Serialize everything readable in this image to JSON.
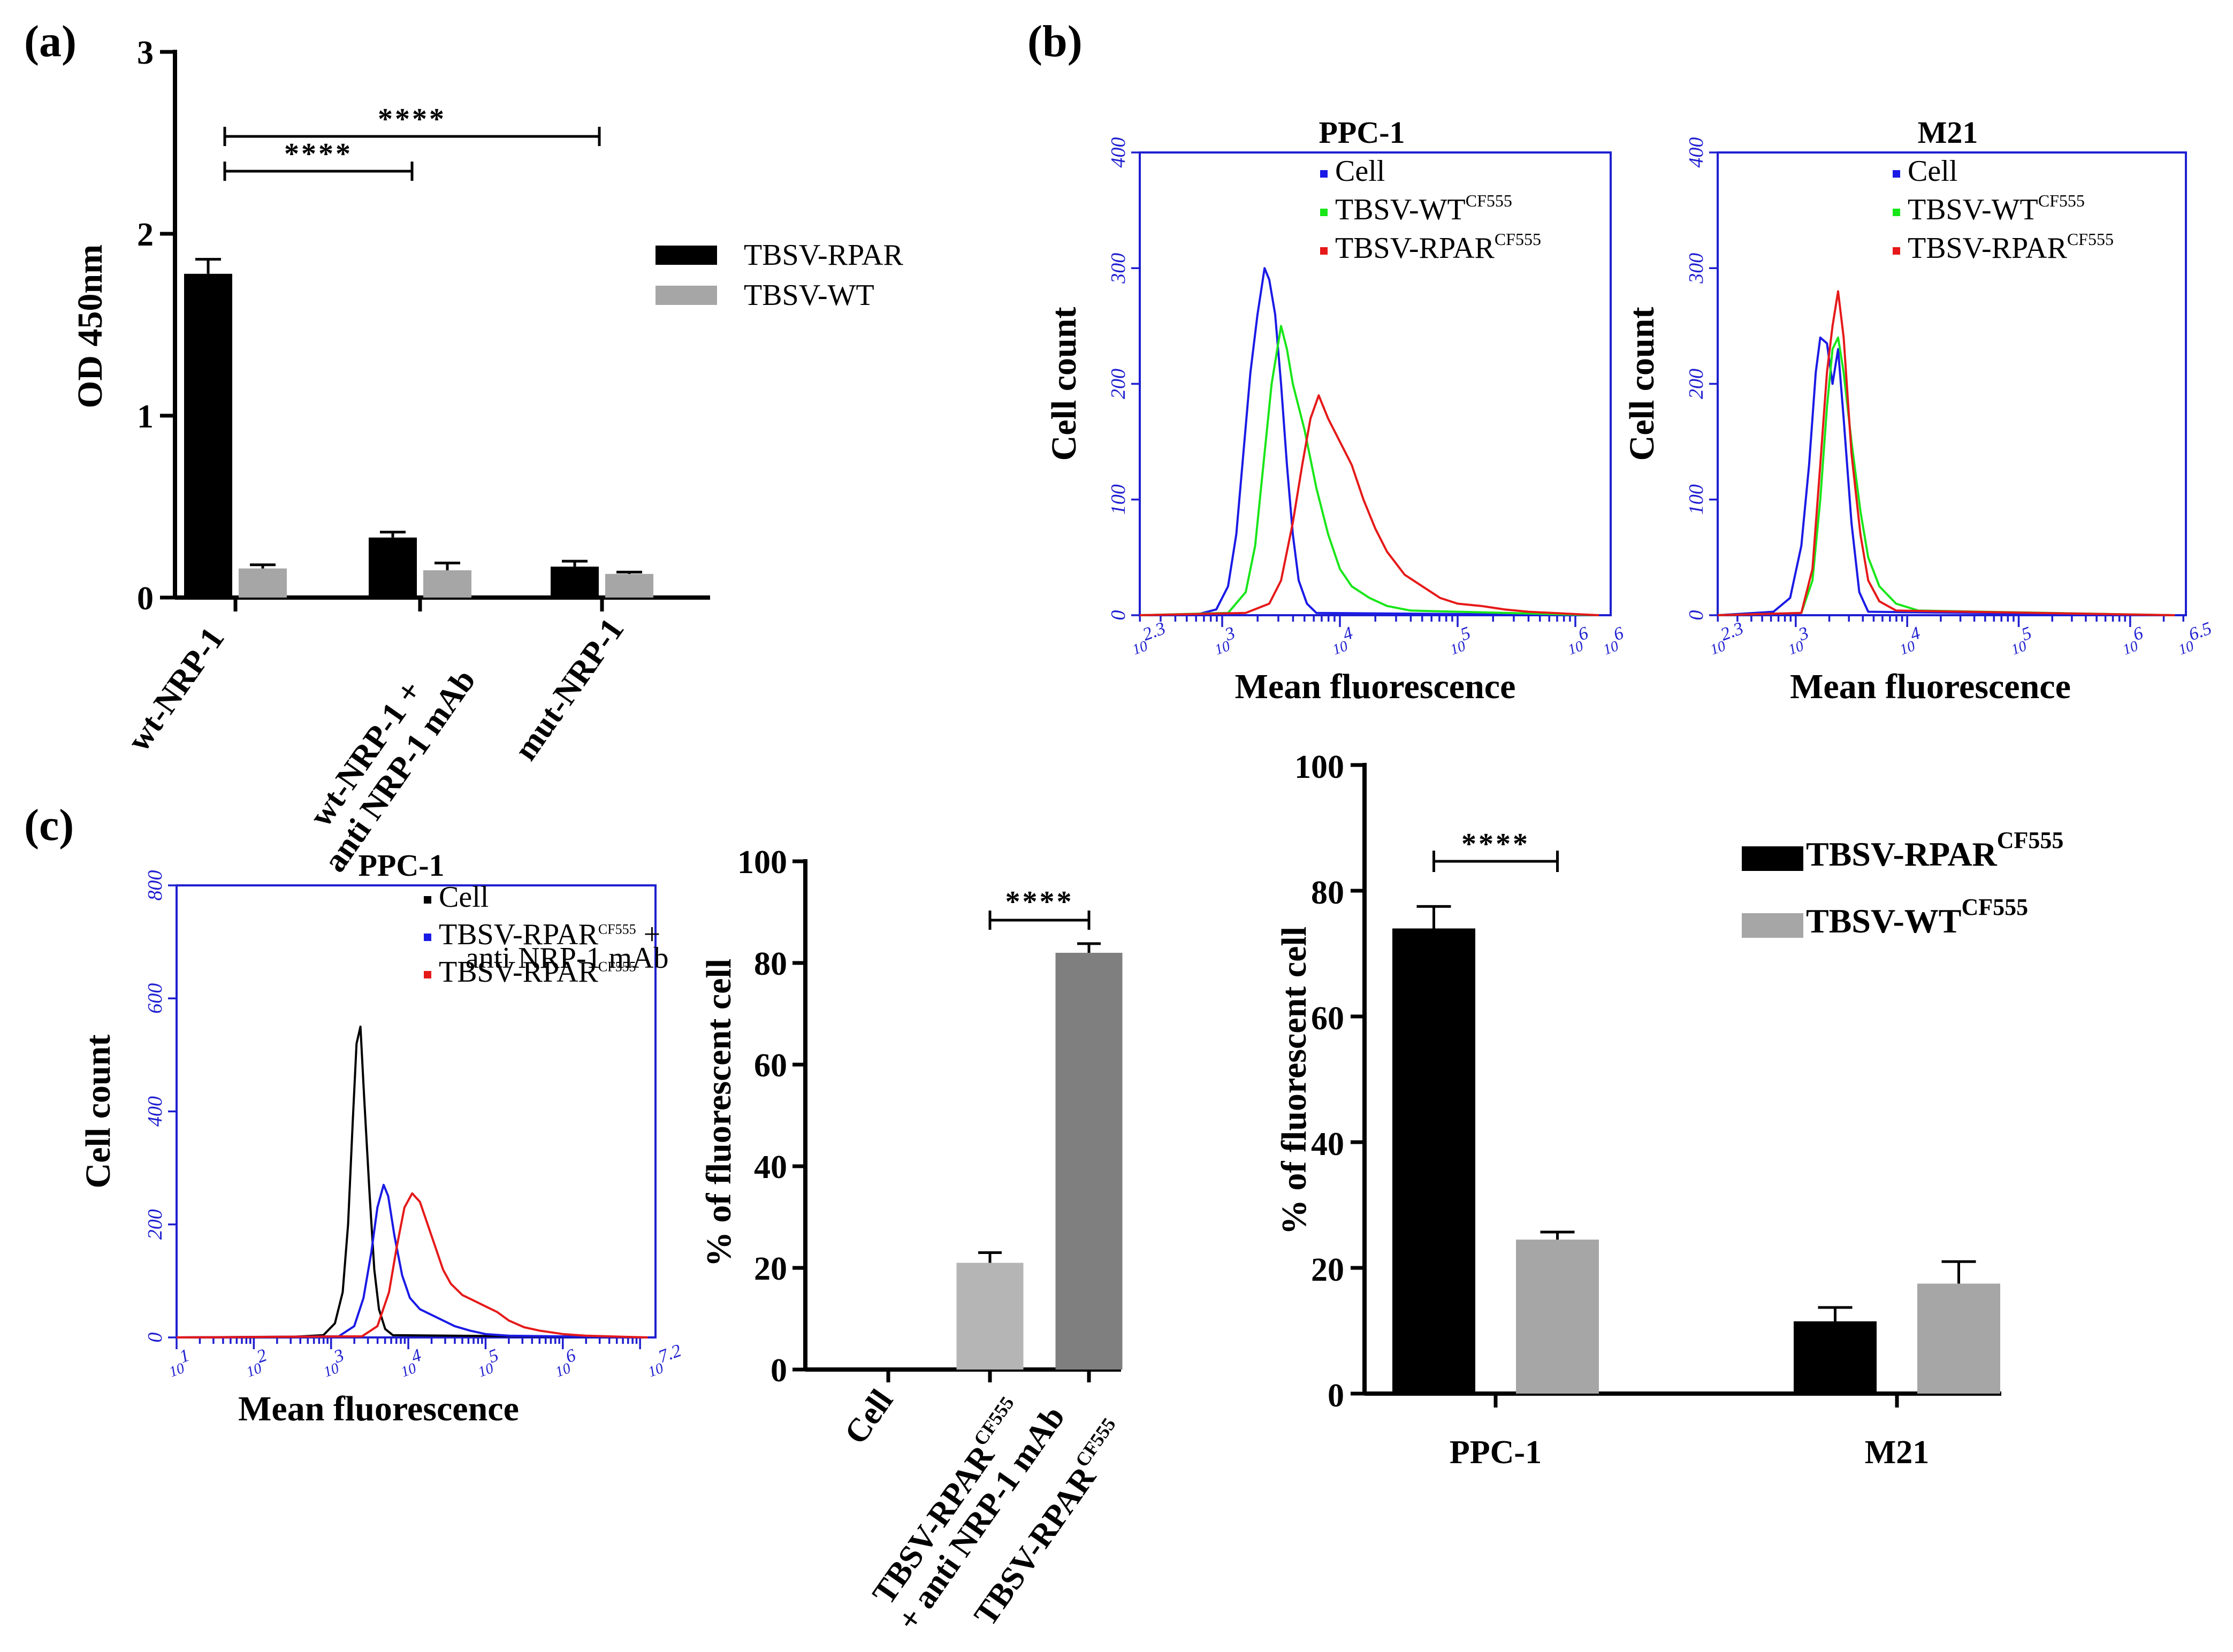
{
  "panels": {
    "a": "(a)",
    "b": "(b)",
    "c": "(c)"
  },
  "colors": {
    "black_bar": "#000000",
    "light_gray_bar": "#a6a6a6",
    "mid_gray_bar": "#b5b5b5",
    "dark_gray_bar": "#7f7f7f",
    "blue": "#1a1ae6",
    "green": "#19e619",
    "red": "#e61919",
    "axis_blue": "#1f1fd0"
  },
  "chart_data": [
    {
      "id": "a",
      "type": "bar",
      "title": "",
      "ylabel": "OD 450nm",
      "ylim": [
        0,
        3
      ],
      "yticks": [
        "0",
        "1",
        "2",
        "3"
      ],
      "categories": [
        "wt-NRP-1",
        "wt-NRP-1 +",
        "mut-NRP-1"
      ],
      "category_line2": [
        "",
        "anti NRP-1 mAb",
        ""
      ],
      "series": [
        {
          "name": "TBSV-RPAR",
          "values": [
            1.78,
            0.33,
            0.17
          ],
          "errors": [
            0.08,
            0.03,
            0.03
          ]
        },
        {
          "name": "TBSV-WT",
          "values": [
            0.16,
            0.15,
            0.13
          ],
          "errors": [
            0.02,
            0.04,
            0.01
          ]
        }
      ],
      "significance": [
        {
          "label": "****",
          "from_category": 0,
          "to_category": 1
        },
        {
          "label": "****",
          "from_category": 0,
          "to_category": 2
        }
      ]
    },
    {
      "id": "b1",
      "type": "line",
      "title": "PPC-1",
      "xlabel": "Mean fluorescence",
      "ylabel": "Cell count",
      "xscale": "log",
      "xlim": [
        2.3,
        6.3
      ],
      "ylim": [
        0,
        400
      ],
      "yticks": [
        "0",
        "100",
        "200",
        "300",
        "400"
      ],
      "xticks": [
        {
          "base": "10",
          "exp": "2.3",
          "v": 2.3
        },
        {
          "base": "10",
          "exp": "3",
          "v": 3
        },
        {
          "base": "10",
          "exp": "4",
          "v": 4
        },
        {
          "base": "10",
          "exp": "5",
          "v": 5
        },
        {
          "base": "10",
          "exp": "6",
          "v": 6
        },
        {
          "base": "10",
          "exp": "6",
          "v": 6.3
        }
      ],
      "legend": [
        {
          "name": "Cell",
          "sup": "",
          "color": "blue"
        },
        {
          "name": "TBSV-WT",
          "sup": "CF555",
          "color": "green"
        },
        {
          "name": "TBSV-RPAR",
          "sup": "CF555",
          "color": "red"
        }
      ],
      "series": [
        {
          "name": "Cell",
          "color": "blue",
          "points": [
            [
              2.3,
              0
            ],
            [
              2.8,
              1
            ],
            [
              2.95,
              5
            ],
            [
              3.05,
              25
            ],
            [
              3.12,
              70
            ],
            [
              3.18,
              140
            ],
            [
              3.24,
              210
            ],
            [
              3.3,
              260
            ],
            [
              3.36,
              300
            ],
            [
              3.4,
              290
            ],
            [
              3.45,
              260
            ],
            [
              3.5,
              200
            ],
            [
              3.55,
              130
            ],
            [
              3.6,
              70
            ],
            [
              3.65,
              30
            ],
            [
              3.72,
              10
            ],
            [
              3.8,
              2
            ],
            [
              6.2,
              0
            ]
          ]
        },
        {
          "name": "TBSV-WT",
          "color": "green",
          "points": [
            [
              2.3,
              0
            ],
            [
              3.05,
              2
            ],
            [
              3.2,
              20
            ],
            [
              3.28,
              60
            ],
            [
              3.35,
              130
            ],
            [
              3.42,
              200
            ],
            [
              3.5,
              250
            ],
            [
              3.55,
              230
            ],
            [
              3.6,
              200
            ],
            [
              3.7,
              160
            ],
            [
              3.8,
              110
            ],
            [
              3.9,
              70
            ],
            [
              4.0,
              40
            ],
            [
              4.1,
              25
            ],
            [
              4.25,
              15
            ],
            [
              4.4,
              8
            ],
            [
              4.6,
              4
            ],
            [
              6.2,
              0
            ]
          ]
        },
        {
          "name": "TBSV-RPAR",
          "color": "red",
          "points": [
            [
              2.3,
              0
            ],
            [
              3.2,
              2
            ],
            [
              3.4,
              10
            ],
            [
              3.5,
              30
            ],
            [
              3.6,
              80
            ],
            [
              3.68,
              130
            ],
            [
              3.75,
              170
            ],
            [
              3.82,
              190
            ],
            [
              3.9,
              170
            ],
            [
              4.0,
              150
            ],
            [
              4.1,
              130
            ],
            [
              4.2,
              100
            ],
            [
              4.3,
              75
            ],
            [
              4.4,
              55
            ],
            [
              4.55,
              35
            ],
            [
              4.7,
              25
            ],
            [
              4.85,
              15
            ],
            [
              5.0,
              10
            ],
            [
              5.2,
              8
            ],
            [
              5.4,
              5
            ],
            [
              5.6,
              3
            ],
            [
              6.2,
              0
            ]
          ]
        }
      ]
    },
    {
      "id": "b2",
      "type": "line",
      "title": "M21",
      "xlabel": "Mean fluorescence",
      "ylabel": "Cell count",
      "xscale": "log",
      "xlim": [
        2.3,
        6.5
      ],
      "ylim": [
        0,
        400
      ],
      "yticks": [
        "0",
        "100",
        "200",
        "300",
        "400"
      ],
      "xticks": [
        {
          "base": "10",
          "exp": "2.3",
          "v": 2.3
        },
        {
          "base": "10",
          "exp": "3",
          "v": 3
        },
        {
          "base": "10",
          "exp": "4",
          "v": 4
        },
        {
          "base": "10",
          "exp": "5",
          "v": 5
        },
        {
          "base": "10",
          "exp": "6",
          "v": 6
        },
        {
          "base": "10",
          "exp": "6.5",
          "v": 6.5
        }
      ],
      "legend": [
        {
          "name": "Cell",
          "sup": "",
          "color": "blue"
        },
        {
          "name": "TBSV-WT",
          "sup": "CF555",
          "color": "green"
        },
        {
          "name": "TBSV-RPAR",
          "sup": "CF555",
          "color": "red"
        }
      ],
      "series": [
        {
          "name": "Cell",
          "color": "blue",
          "points": [
            [
              2.3,
              0
            ],
            [
              2.8,
              3
            ],
            [
              2.95,
              15
            ],
            [
              3.05,
              60
            ],
            [
              3.12,
              130
            ],
            [
              3.18,
              210
            ],
            [
              3.22,
              240
            ],
            [
              3.28,
              235
            ],
            [
              3.33,
              200
            ],
            [
              3.38,
              230
            ],
            [
              3.43,
              170
            ],
            [
              3.5,
              80
            ],
            [
              3.57,
              20
            ],
            [
              3.65,
              3
            ],
            [
              6.4,
              0
            ]
          ]
        },
        {
          "name": "TBSV-WT",
          "color": "green",
          "points": [
            [
              2.3,
              0
            ],
            [
              3.05,
              2
            ],
            [
              3.15,
              30
            ],
            [
              3.22,
              100
            ],
            [
              3.28,
              180
            ],
            [
              3.33,
              230
            ],
            [
              3.38,
              240
            ],
            [
              3.43,
              210
            ],
            [
              3.5,
              150
            ],
            [
              3.58,
              90
            ],
            [
              3.65,
              50
            ],
            [
              3.75,
              25
            ],
            [
              3.9,
              10
            ],
            [
              4.1,
              4
            ],
            [
              6.4,
              0
            ]
          ]
        },
        {
          "name": "TBSV-RPAR",
          "color": "red",
          "points": [
            [
              2.3,
              0
            ],
            [
              3.05,
              2
            ],
            [
              3.15,
              40
            ],
            [
              3.22,
              130
            ],
            [
              3.28,
              210
            ],
            [
              3.33,
              250
            ],
            [
              3.38,
              280
            ],
            [
              3.43,
              240
            ],
            [
              3.5,
              140
            ],
            [
              3.58,
              70
            ],
            [
              3.65,
              30
            ],
            [
              3.75,
              12
            ],
            [
              3.9,
              4
            ],
            [
              6.4,
              0
            ]
          ]
        }
      ]
    },
    {
      "id": "c1",
      "type": "line",
      "title": "PPC-1",
      "xlabel": "Mean fluorescence",
      "ylabel": "Cell count",
      "xscale": "log",
      "xlim": [
        1,
        7.2
      ],
      "ylim": [
        0,
        800
      ],
      "yticks": [
        "0",
        "200",
        "400",
        "600",
        "800"
      ],
      "xticks": [
        {
          "base": "10",
          "exp": "1",
          "v": 1
        },
        {
          "base": "10",
          "exp": "2",
          "v": 2
        },
        {
          "base": "10",
          "exp": "3",
          "v": 3
        },
        {
          "base": "10",
          "exp": "4",
          "v": 4
        },
        {
          "base": "10",
          "exp": "5",
          "v": 5
        },
        {
          "base": "10",
          "exp": "6",
          "v": 6
        },
        {
          "base": "10",
          "exp": "7.2",
          "v": 7.2
        }
      ],
      "legend": [
        {
          "name": "Cell",
          "sup": "",
          "line2": "",
          "color": "black"
        },
        {
          "name": "TBSV-RPAR",
          "sup": "CF555",
          "suffix": " +",
          "line2": "anti NRP-1 mAb",
          "color": "blue"
        },
        {
          "name": "TBSV-RPAR",
          "sup": "CF555",
          "line2": "",
          "color": "red"
        }
      ],
      "series": [
        {
          "name": "Cell",
          "color": "black",
          "points": [
            [
              1,
              0
            ],
            [
              2.5,
              1
            ],
            [
              2.9,
              4
            ],
            [
              3.05,
              25
            ],
            [
              3.15,
              80
            ],
            [
              3.22,
              200
            ],
            [
              3.28,
              380
            ],
            [
              3.33,
              520
            ],
            [
              3.38,
              550
            ],
            [
              3.43,
              420
            ],
            [
              3.5,
              250
            ],
            [
              3.56,
              120
            ],
            [
              3.62,
              50
            ],
            [
              3.7,
              15
            ],
            [
              3.8,
              4
            ],
            [
              7.1,
              0
            ]
          ]
        },
        {
          "name": "TBSV-RPAR + anti NRP-1 mAb",
          "color": "blue",
          "points": [
            [
              1,
              0
            ],
            [
              3.1,
              2
            ],
            [
              3.3,
              20
            ],
            [
              3.42,
              70
            ],
            [
              3.52,
              150
            ],
            [
              3.6,
              230
            ],
            [
              3.68,
              270
            ],
            [
              3.74,
              250
            ],
            [
              3.82,
              180
            ],
            [
              3.92,
              110
            ],
            [
              4.02,
              70
            ],
            [
              4.15,
              50
            ],
            [
              4.3,
              40
            ],
            [
              4.45,
              30
            ],
            [
              4.6,
              20
            ],
            [
              4.8,
              12
            ],
            [
              5.0,
              6
            ],
            [
              5.3,
              3
            ],
            [
              7.1,
              0
            ]
          ]
        },
        {
          "name": "TBSV-RPAR",
          "color": "red",
          "points": [
            [
              1,
              0
            ],
            [
              3.4,
              2
            ],
            [
              3.6,
              20
            ],
            [
              3.75,
              80
            ],
            [
              3.85,
              160
            ],
            [
              3.95,
              230
            ],
            [
              4.05,
              255
            ],
            [
              4.15,
              240
            ],
            [
              4.25,
              200
            ],
            [
              4.35,
              160
            ],
            [
              4.45,
              120
            ],
            [
              4.55,
              95
            ],
            [
              4.7,
              75
            ],
            [
              4.85,
              65
            ],
            [
              5.0,
              55
            ],
            [
              5.15,
              45
            ],
            [
              5.3,
              30
            ],
            [
              5.5,
              18
            ],
            [
              5.7,
              12
            ],
            [
              6.0,
              6
            ],
            [
              6.3,
              3
            ],
            [
              7.1,
              0
            ]
          ]
        }
      ]
    },
    {
      "id": "c2",
      "type": "bar",
      "ylabel": "% of fluorescent cell",
      "ylim": [
        0,
        100
      ],
      "yticks": [
        "0",
        "20",
        "40",
        "60",
        "80",
        "100"
      ],
      "categories": [
        "Cell",
        "TBSV-RPAR",
        "TBSV-RPAR"
      ],
      "category_sup": [
        "",
        "CF555",
        "CF555"
      ],
      "category_line2": [
        "",
        "+ anti NRP-1 mAb",
        ""
      ],
      "values": [
        0,
        21,
        82
      ],
      "errors": [
        0,
        2,
        1.8
      ],
      "bar_colors": [
        "light_gray_bar",
        "mid_gray_bar",
        "dark_gray_bar"
      ],
      "significance": [
        {
          "label": "****",
          "from_category": 1,
          "to_category": 2
        }
      ]
    },
    {
      "id": "b3",
      "type": "bar",
      "ylabel": "% of fluorescent cell",
      "ylim": [
        0,
        100
      ],
      "yticks": [
        "0",
        "20",
        "40",
        "60",
        "80",
        "100"
      ],
      "categories": [
        "PPC-1",
        "M21"
      ],
      "series": [
        {
          "name": "TBSV-RPAR",
          "sup": "CF555",
          "values": [
            74,
            11.5
          ],
          "errors": [
            3.5,
            2.2
          ]
        },
        {
          "name": "TBSV-WT",
          "sup": "CF555",
          "values": [
            24.5,
            17.5
          ],
          "errors": [
            1.2,
            3.5
          ]
        }
      ],
      "significance": [
        {
          "label": "****",
          "within_category": 0
        }
      ]
    }
  ]
}
